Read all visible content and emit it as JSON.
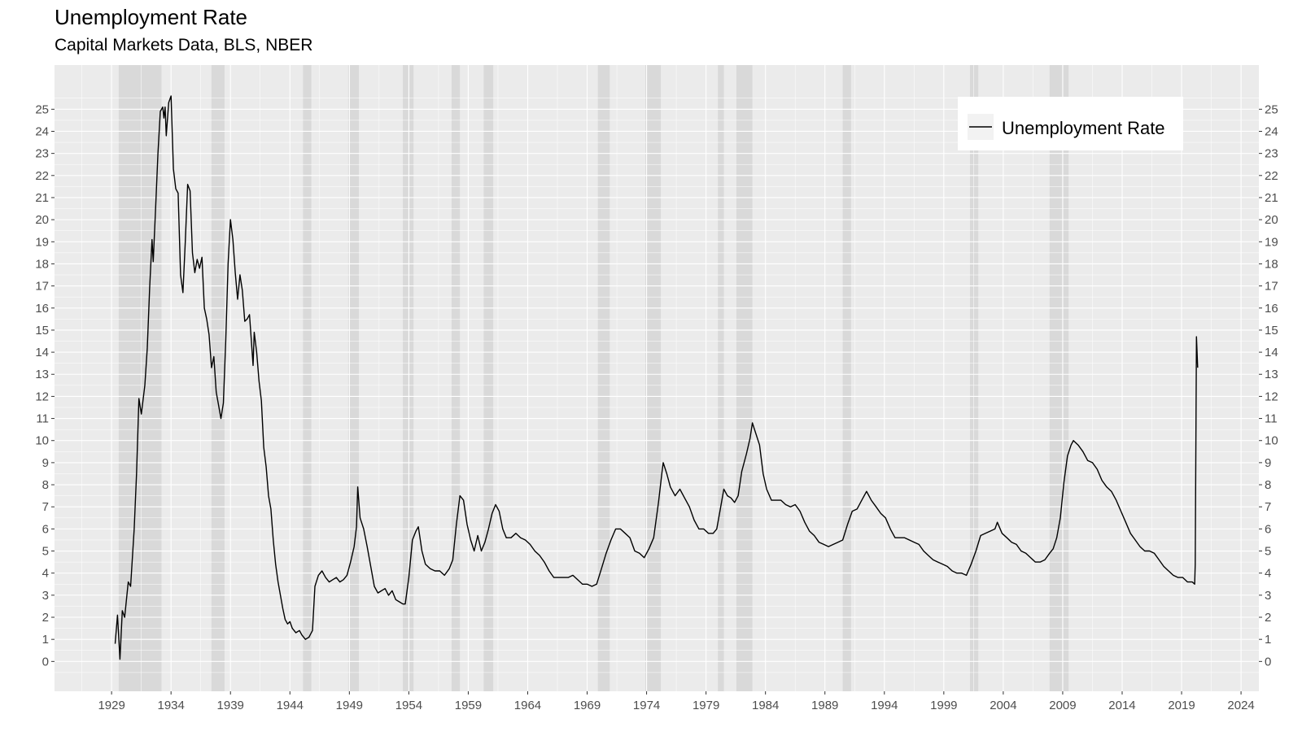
{
  "chart_data": {
    "type": "line",
    "title": "Unemployment Rate",
    "subtitle": "Capital Markets Data, BLS, NBER",
    "xlabel": "",
    "ylabel": "",
    "xlim": [
      1924.2,
      2025.5
    ],
    "ylim": [
      -1.35,
      27.0
    ],
    "x_ticks": [
      1929,
      1934,
      1939,
      1944,
      1949,
      1954,
      1959,
      1964,
      1969,
      1974,
      1979,
      1984,
      1989,
      1994,
      1999,
      2004,
      2009,
      2014,
      2019,
      2024
    ],
    "y_ticks": [
      0,
      1,
      2,
      3,
      4,
      5,
      6,
      7,
      8,
      9,
      10,
      11,
      12,
      13,
      14,
      15,
      16,
      17,
      18,
      19,
      20,
      21,
      22,
      23,
      24,
      25
    ],
    "grid": true,
    "legend": {
      "position": "top-right",
      "entries": [
        "Unemployment Rate"
      ]
    },
    "colors": {
      "panel": "#EBEBEB",
      "grid": "#FFFFFF",
      "recession": "#D9D9D9",
      "line": "#000000"
    },
    "recessions": [
      [
        1929.6,
        1933.2
      ],
      [
        1937.4,
        1938.5
      ],
      [
        1945.1,
        1945.8
      ],
      [
        1948.9,
        1949.8
      ],
      [
        1953.5,
        1954.4
      ],
      [
        1957.6,
        1958.3
      ],
      [
        1960.3,
        1961.1
      ],
      [
        1969.9,
        1970.9
      ],
      [
        1973.9,
        1975.2
      ],
      [
        1980.0,
        1980.5
      ],
      [
        1981.5,
        1982.9
      ],
      [
        1990.5,
        1991.2
      ],
      [
        2001.2,
        2001.9
      ],
      [
        2007.9,
        2009.5
      ]
    ],
    "series": [
      {
        "name": "Unemployment Rate",
        "points": [
          [
            1929.3,
            0.8
          ],
          [
            1929.5,
            2.1
          ],
          [
            1929.7,
            0.1
          ],
          [
            1929.9,
            2.3
          ],
          [
            1930.1,
            2.0
          ],
          [
            1930.4,
            3.6
          ],
          [
            1930.6,
            3.4
          ],
          [
            1930.9,
            6.0
          ],
          [
            1931.1,
            8.5
          ],
          [
            1931.3,
            11.9
          ],
          [
            1931.5,
            11.2
          ],
          [
            1931.8,
            12.5
          ],
          [
            1932.0,
            14.2
          ],
          [
            1932.2,
            16.9
          ],
          [
            1932.4,
            19.1
          ],
          [
            1932.5,
            18.1
          ],
          [
            1932.7,
            20.5
          ],
          [
            1932.9,
            23.0
          ],
          [
            1933.1,
            24.9
          ],
          [
            1933.3,
            25.1
          ],
          [
            1933.4,
            24.6
          ],
          [
            1933.5,
            25.1
          ],
          [
            1933.6,
            23.8
          ],
          [
            1933.8,
            25.3
          ],
          [
            1934.0,
            25.6
          ],
          [
            1934.2,
            22.3
          ],
          [
            1934.4,
            21.4
          ],
          [
            1934.6,
            21.2
          ],
          [
            1934.8,
            17.5
          ],
          [
            1935.0,
            16.7
          ],
          [
            1935.2,
            19.0
          ],
          [
            1935.4,
            21.6
          ],
          [
            1935.6,
            21.3
          ],
          [
            1935.8,
            18.5
          ],
          [
            1936.0,
            17.6
          ],
          [
            1936.2,
            18.2
          ],
          [
            1936.4,
            17.8
          ],
          [
            1936.6,
            18.3
          ],
          [
            1936.8,
            16.0
          ],
          [
            1937.0,
            15.5
          ],
          [
            1937.2,
            14.8
          ],
          [
            1937.4,
            13.3
          ],
          [
            1937.6,
            13.8
          ],
          [
            1937.8,
            12.2
          ],
          [
            1938.0,
            11.6
          ],
          [
            1938.2,
            11.0
          ],
          [
            1938.4,
            11.7
          ],
          [
            1938.6,
            14.5
          ],
          [
            1938.8,
            18.0
          ],
          [
            1939.0,
            20.0
          ],
          [
            1939.2,
            19.1
          ],
          [
            1939.4,
            17.6
          ],
          [
            1939.6,
            16.4
          ],
          [
            1939.8,
            17.5
          ],
          [
            1940.0,
            16.8
          ],
          [
            1940.2,
            15.4
          ],
          [
            1940.4,
            15.5
          ],
          [
            1940.6,
            15.7
          ],
          [
            1940.8,
            14.2
          ],
          [
            1940.9,
            13.4
          ],
          [
            1941.0,
            14.9
          ],
          [
            1941.2,
            14.0
          ],
          [
            1941.4,
            12.7
          ],
          [
            1941.6,
            11.8
          ],
          [
            1941.8,
            9.7
          ],
          [
            1942.0,
            8.8
          ],
          [
            1942.2,
            7.5
          ],
          [
            1942.4,
            6.9
          ],
          [
            1942.6,
            5.5
          ],
          [
            1942.8,
            4.4
          ],
          [
            1943.0,
            3.6
          ],
          [
            1943.2,
            3.0
          ],
          [
            1943.4,
            2.4
          ],
          [
            1943.6,
            1.9
          ],
          [
            1943.8,
            1.7
          ],
          [
            1944.0,
            1.8
          ],
          [
            1944.2,
            1.5
          ],
          [
            1944.5,
            1.3
          ],
          [
            1944.8,
            1.4
          ],
          [
            1945.0,
            1.2
          ],
          [
            1945.3,
            1.0
          ],
          [
            1945.6,
            1.1
          ],
          [
            1945.9,
            1.4
          ],
          [
            1946.1,
            3.4
          ],
          [
            1946.4,
            3.9
          ],
          [
            1946.7,
            4.1
          ],
          [
            1947.0,
            3.8
          ],
          [
            1947.3,
            3.6
          ],
          [
            1947.6,
            3.7
          ],
          [
            1947.9,
            3.8
          ],
          [
            1948.2,
            3.6
          ],
          [
            1948.5,
            3.7
          ],
          [
            1948.8,
            3.9
          ],
          [
            1949.1,
            4.5
          ],
          [
            1949.4,
            5.2
          ],
          [
            1949.6,
            6.1
          ],
          [
            1949.7,
            7.9
          ],
          [
            1949.9,
            6.5
          ],
          [
            1950.2,
            6.0
          ],
          [
            1950.5,
            5.2
          ],
          [
            1950.8,
            4.3
          ],
          [
            1951.1,
            3.4
          ],
          [
            1951.4,
            3.1
          ],
          [
            1951.7,
            3.2
          ],
          [
            1952.0,
            3.3
          ],
          [
            1952.3,
            3.0
          ],
          [
            1952.6,
            3.2
          ],
          [
            1952.9,
            2.8
          ],
          [
            1953.2,
            2.7
          ],
          [
            1953.5,
            2.6
          ],
          [
            1953.7,
            2.6
          ],
          [
            1954.0,
            3.8
          ],
          [
            1954.3,
            5.5
          ],
          [
            1954.6,
            5.9
          ],
          [
            1954.8,
            6.1
          ],
          [
            1955.1,
            5.0
          ],
          [
            1955.4,
            4.4
          ],
          [
            1955.8,
            4.2
          ],
          [
            1956.2,
            4.1
          ],
          [
            1956.6,
            4.1
          ],
          [
            1957.0,
            3.9
          ],
          [
            1957.4,
            4.2
          ],
          [
            1957.7,
            4.6
          ],
          [
            1958.0,
            6.2
          ],
          [
            1958.3,
            7.5
          ],
          [
            1958.6,
            7.3
          ],
          [
            1958.9,
            6.2
          ],
          [
            1959.2,
            5.5
          ],
          [
            1959.5,
            5.0
          ],
          [
            1959.8,
            5.7
          ],
          [
            1960.1,
            5.0
          ],
          [
            1960.4,
            5.4
          ],
          [
            1960.7,
            6.0
          ],
          [
            1961.0,
            6.7
          ],
          [
            1961.3,
            7.1
          ],
          [
            1961.6,
            6.8
          ],
          [
            1961.9,
            6.0
          ],
          [
            1962.2,
            5.6
          ],
          [
            1962.6,
            5.6
          ],
          [
            1963.0,
            5.8
          ],
          [
            1963.4,
            5.6
          ],
          [
            1963.8,
            5.5
          ],
          [
            1964.2,
            5.3
          ],
          [
            1964.6,
            5.0
          ],
          [
            1965.0,
            4.8
          ],
          [
            1965.4,
            4.5
          ],
          [
            1965.8,
            4.1
          ],
          [
            1966.2,
            3.8
          ],
          [
            1966.6,
            3.8
          ],
          [
            1967.0,
            3.8
          ],
          [
            1967.4,
            3.8
          ],
          [
            1967.8,
            3.9
          ],
          [
            1968.2,
            3.7
          ],
          [
            1968.6,
            3.5
          ],
          [
            1969.0,
            3.5
          ],
          [
            1969.4,
            3.4
          ],
          [
            1969.8,
            3.5
          ],
          [
            1970.2,
            4.2
          ],
          [
            1970.6,
            4.9
          ],
          [
            1971.0,
            5.5
          ],
          [
            1971.4,
            6.0
          ],
          [
            1971.8,
            6.0
          ],
          [
            1972.2,
            5.8
          ],
          [
            1972.6,
            5.6
          ],
          [
            1973.0,
            5.0
          ],
          [
            1973.4,
            4.9
          ],
          [
            1973.8,
            4.7
          ],
          [
            1974.2,
            5.1
          ],
          [
            1974.6,
            5.6
          ],
          [
            1975.0,
            7.2
          ],
          [
            1975.3,
            8.6
          ],
          [
            1975.4,
            9.0
          ],
          [
            1975.7,
            8.5
          ],
          [
            1976.0,
            7.9
          ],
          [
            1976.4,
            7.5
          ],
          [
            1976.8,
            7.8
          ],
          [
            1977.2,
            7.4
          ],
          [
            1977.6,
            7.0
          ],
          [
            1978.0,
            6.4
          ],
          [
            1978.4,
            6.0
          ],
          [
            1978.8,
            6.0
          ],
          [
            1979.2,
            5.8
          ],
          [
            1979.6,
            5.8
          ],
          [
            1979.9,
            6.0
          ],
          [
            1980.2,
            6.9
          ],
          [
            1980.5,
            7.8
          ],
          [
            1980.8,
            7.5
          ],
          [
            1981.1,
            7.4
          ],
          [
            1981.4,
            7.2
          ],
          [
            1981.7,
            7.5
          ],
          [
            1982.0,
            8.6
          ],
          [
            1982.4,
            9.4
          ],
          [
            1982.7,
            10.1
          ],
          [
            1982.9,
            10.8
          ],
          [
            1983.2,
            10.3
          ],
          [
            1983.5,
            9.8
          ],
          [
            1983.8,
            8.5
          ],
          [
            1984.1,
            7.8
          ],
          [
            1984.5,
            7.3
          ],
          [
            1984.9,
            7.3
          ],
          [
            1985.3,
            7.3
          ],
          [
            1985.7,
            7.1
          ],
          [
            1986.1,
            7.0
          ],
          [
            1986.5,
            7.1
          ],
          [
            1986.9,
            6.8
          ],
          [
            1987.3,
            6.3
          ],
          [
            1987.7,
            5.9
          ],
          [
            1988.1,
            5.7
          ],
          [
            1988.5,
            5.4
          ],
          [
            1988.9,
            5.3
          ],
          [
            1989.3,
            5.2
          ],
          [
            1989.7,
            5.3
          ],
          [
            1990.1,
            5.4
          ],
          [
            1990.5,
            5.5
          ],
          [
            1990.9,
            6.2
          ],
          [
            1991.3,
            6.8
          ],
          [
            1991.7,
            6.9
          ],
          [
            1992.1,
            7.3
          ],
          [
            1992.5,
            7.7
          ],
          [
            1992.9,
            7.3
          ],
          [
            1993.3,
            7.0
          ],
          [
            1993.7,
            6.7
          ],
          [
            1994.1,
            6.5
          ],
          [
            1994.5,
            6.0
          ],
          [
            1994.9,
            5.6
          ],
          [
            1995.3,
            5.6
          ],
          [
            1995.7,
            5.6
          ],
          [
            1996.1,
            5.5
          ],
          [
            1996.5,
            5.4
          ],
          [
            1996.9,
            5.3
          ],
          [
            1997.3,
            5.0
          ],
          [
            1997.7,
            4.8
          ],
          [
            1998.1,
            4.6
          ],
          [
            1998.5,
            4.5
          ],
          [
            1998.9,
            4.4
          ],
          [
            1999.3,
            4.3
          ],
          [
            1999.7,
            4.1
          ],
          [
            2000.1,
            4.0
          ],
          [
            2000.5,
            4.0
          ],
          [
            2000.9,
            3.9
          ],
          [
            2001.3,
            4.4
          ],
          [
            2001.7,
            5.0
          ],
          [
            2002.1,
            5.7
          ],
          [
            2002.5,
            5.8
          ],
          [
            2002.9,
            5.9
          ],
          [
            2003.3,
            6.0
          ],
          [
            2003.5,
            6.3
          ],
          [
            2003.9,
            5.8
          ],
          [
            2004.3,
            5.6
          ],
          [
            2004.7,
            5.4
          ],
          [
            2005.1,
            5.3
          ],
          [
            2005.5,
            5.0
          ],
          [
            2005.9,
            4.9
          ],
          [
            2006.3,
            4.7
          ],
          [
            2006.7,
            4.5
          ],
          [
            2007.1,
            4.5
          ],
          [
            2007.5,
            4.6
          ],
          [
            2007.9,
            4.9
          ],
          [
            2008.2,
            5.1
          ],
          [
            2008.5,
            5.6
          ],
          [
            2008.8,
            6.5
          ],
          [
            2009.1,
            8.1
          ],
          [
            2009.4,
            9.3
          ],
          [
            2009.7,
            9.8
          ],
          [
            2009.9,
            10.0
          ],
          [
            2010.3,
            9.8
          ],
          [
            2010.7,
            9.5
          ],
          [
            2011.1,
            9.1
          ],
          [
            2011.5,
            9.0
          ],
          [
            2011.9,
            8.7
          ],
          [
            2012.3,
            8.2
          ],
          [
            2012.7,
            7.9
          ],
          [
            2013.1,
            7.7
          ],
          [
            2013.5,
            7.3
          ],
          [
            2013.9,
            6.8
          ],
          [
            2014.3,
            6.3
          ],
          [
            2014.7,
            5.8
          ],
          [
            2015.1,
            5.5
          ],
          [
            2015.5,
            5.2
          ],
          [
            2015.9,
            5.0
          ],
          [
            2016.3,
            5.0
          ],
          [
            2016.7,
            4.9
          ],
          [
            2017.1,
            4.6
          ],
          [
            2017.5,
            4.3
          ],
          [
            2017.9,
            4.1
          ],
          [
            2018.3,
            3.9
          ],
          [
            2018.7,
            3.8
          ],
          [
            2019.1,
            3.8
          ],
          [
            2019.5,
            3.6
          ],
          [
            2019.9,
            3.6
          ],
          [
            2020.1,
            3.5
          ],
          [
            2020.15,
            4.4
          ],
          [
            2020.25,
            14.7
          ],
          [
            2020.35,
            13.3
          ]
        ]
      }
    ]
  }
}
